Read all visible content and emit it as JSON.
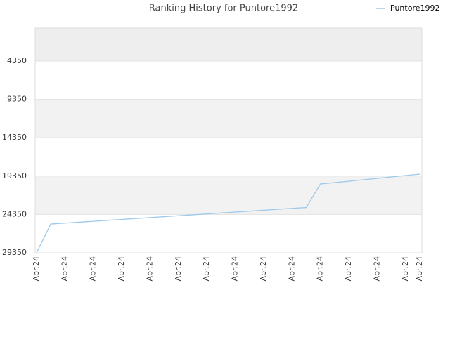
{
  "chart_data": {
    "type": "line",
    "title": "Ranking History for Puntore1992",
    "categories": [
      "Apr.24",
      null,
      "Apr.24",
      null,
      "Apr.24",
      null,
      "Apr.24",
      null,
      "Apr.24",
      null,
      "Apr.24",
      null,
      "Apr.24",
      null,
      "Apr.24",
      null,
      "Apr.24",
      null,
      "Apr.24",
      null,
      "Apr.24",
      null,
      "Apr.24",
      null,
      "Apr.24",
      null,
      "Apr.24",
      "Apr.24"
    ],
    "series": [
      {
        "name": "Puntore1992",
        "color": "#9ec9ea",
        "values": [
          29350,
          25600,
          25480,
          25360,
          25240,
          25120,
          25000,
          24880,
          24760,
          24640,
          24520,
          24400,
          24280,
          24160,
          24040,
          23920,
          23800,
          23680,
          23560,
          23450,
          20380,
          20200,
          20020,
          19830,
          19650,
          19460,
          19280,
          19100
        ]
      }
    ],
    "ylim": [
      29350,
      50
    ],
    "yticks": [
      4350,
      9350,
      14350,
      19350,
      24350,
      29350
    ],
    "grid": true,
    "legend": "top-right"
  }
}
